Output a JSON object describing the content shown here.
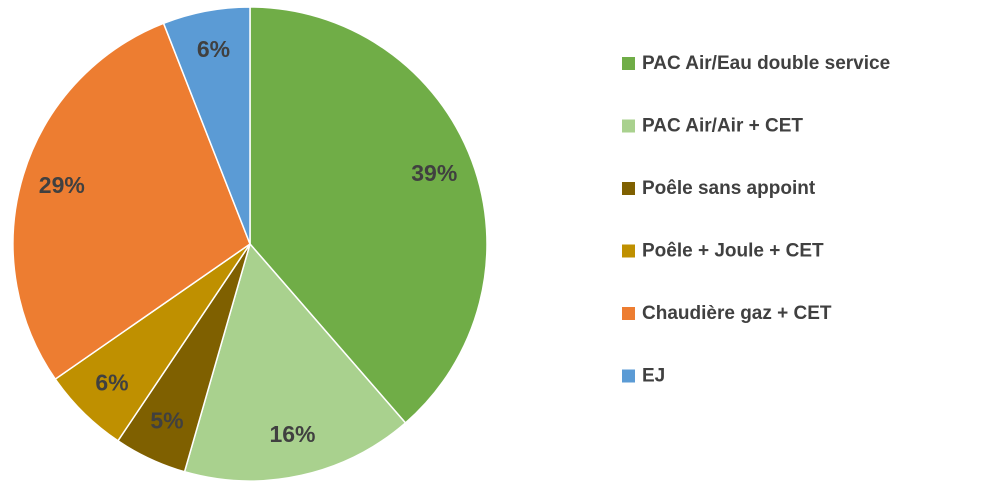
{
  "chart_data": {
    "type": "pie",
    "categories": [
      "PAC Air/Eau double service",
      "PAC Air/Air + CET",
      "Poêle sans appoint",
      "Poêle + Joule + CET",
      "Chaudière gaz + CET",
      "EJ"
    ],
    "values": [
      39,
      16,
      5,
      6,
      29,
      6
    ],
    "value_labels": [
      "39%",
      "16%",
      "5%",
      "6%",
      "29%",
      "6%"
    ],
    "colors": [
      "#70ad47",
      "#a9d18e",
      "#7f6000",
      "#bf9000",
      "#ed7d31",
      "#5b9bd5"
    ],
    "legend": "right"
  }
}
